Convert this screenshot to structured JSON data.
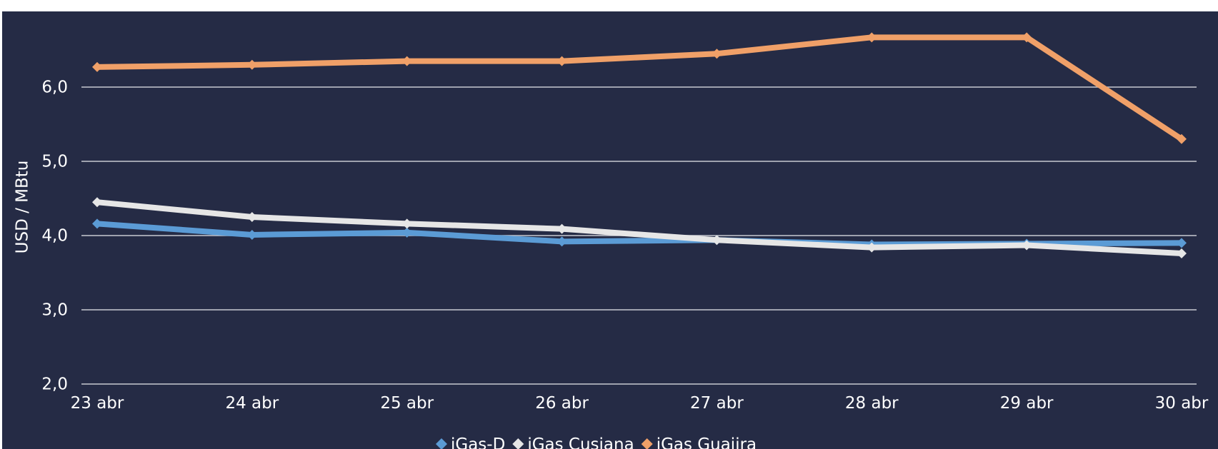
{
  "chart_data": {
    "type": "line",
    "title": "",
    "xlabel": "",
    "ylabel": "USD / MBtu",
    "ylim": [
      2.0,
      6.0
    ],
    "y_ticks": [
      "2,0",
      "3,0",
      "4,0",
      "5,0",
      "6,0"
    ],
    "grid": true,
    "legend_position": "bottom",
    "categories": [
      "23 abr",
      "24 abr",
      "25 abr",
      "26 abr",
      "27 abr",
      "28 abr",
      "29 abr",
      "30 abr"
    ],
    "series": [
      {
        "name": "iGas-D",
        "color": "#5b9bd5",
        "values": [
          4.16,
          4.01,
          4.04,
          3.92,
          3.94,
          3.88,
          3.89,
          3.9
        ]
      },
      {
        "name": "iGas Cusiana",
        "color": "#e6e6e6",
        "values": [
          4.45,
          4.25,
          4.16,
          4.09,
          3.94,
          3.84,
          3.87,
          3.76
        ]
      },
      {
        "name": "iGas Guajira",
        "color": "#f0a068",
        "values": [
          6.27,
          6.3,
          6.35,
          6.35,
          6.45,
          6.67,
          6.67,
          5.3
        ]
      }
    ]
  }
}
